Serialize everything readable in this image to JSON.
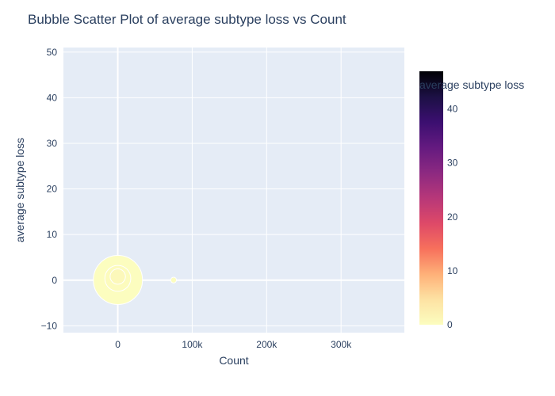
{
  "chart_data": {
    "type": "scatter",
    "title": "Bubble Scatter Plot of average subtype loss vs Count",
    "xlabel": "Count",
    "ylabel": "average subtype loss",
    "xlim": [
      -73000,
      385000
    ],
    "ylim": [
      -11.5,
      51
    ],
    "x_ticks": [
      0,
      100000,
      200000,
      300000
    ],
    "x_tick_labels": [
      "0",
      "100k",
      "200k",
      "300k"
    ],
    "y_ticks": [
      -10,
      0,
      10,
      20,
      30,
      40,
      50
    ],
    "y_tick_labels": [
      "−10",
      "0",
      "10",
      "20",
      "30",
      "40",
      "50"
    ],
    "colorbar": {
      "title": "average subtype loss",
      "range": [
        0,
        47
      ],
      "ticks": [
        0,
        10,
        20,
        30,
        40
      ],
      "tick_labels": [
        "0",
        "10",
        "20",
        "30",
        "40"
      ],
      "colorscale": [
        "#fcfdbf",
        "#fde2a3",
        "#feb078",
        "#f7705c",
        "#de4968",
        "#b73779",
        "#8c2981",
        "#641a80",
        "#3b0f70",
        "#1c1044",
        "#000004"
      ],
      "colorscale_reversed_for_display": true
    },
    "points": [
      {
        "x": 200,
        "y": 0.05,
        "size": 3.6,
        "color_value": 0.05
      },
      {
        "x": 50,
        "y": 0.4,
        "size": 1.0,
        "color_value": 0.4
      },
      {
        "x": 20,
        "y": 0.8,
        "size": 0.35,
        "color_value": 0.8
      },
      {
        "x": 75000,
        "y": 0.02,
        "size": 0.05,
        "color_value": 0.02
      }
    ],
    "grid": true,
    "legend": "colorbar-right"
  }
}
